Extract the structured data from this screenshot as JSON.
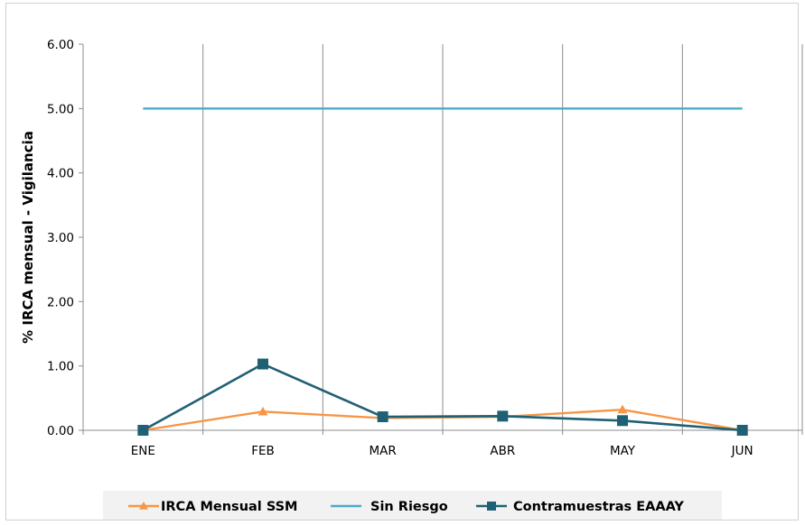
{
  "chart_data": {
    "type": "line",
    "categories": [
      "ENE",
      "FEB",
      "MAR",
      "ABR",
      "MAY",
      "JUN"
    ],
    "ylabel": "% IRCA mensual - Vigilancia",
    "xlabel": "",
    "ylim": [
      0,
      6
    ],
    "yticks": [
      "0.00",
      "1.00",
      "2.00",
      "3.00",
      "4.00",
      "5.00",
      "6.00"
    ],
    "grid": {
      "vertical": true,
      "horizontal": false
    },
    "legend_position": "bottom",
    "series": [
      {
        "name": "IRCA Mensual SSM",
        "values": [
          0,
          0.29,
          0.19,
          0.21,
          0.32,
          0
        ],
        "color": "#f79646",
        "marker": "triangle"
      },
      {
        "name": "Sin Riesgo",
        "values": [
          5,
          5,
          5,
          5,
          5,
          5
        ],
        "color": "#4bacc6",
        "marker": "none"
      },
      {
        "name": "Contramuestras EAAAY",
        "values": [
          0,
          1.03,
          0.21,
          0.22,
          0.15,
          0
        ],
        "color": "#1f6074",
        "marker": "square"
      }
    ]
  }
}
